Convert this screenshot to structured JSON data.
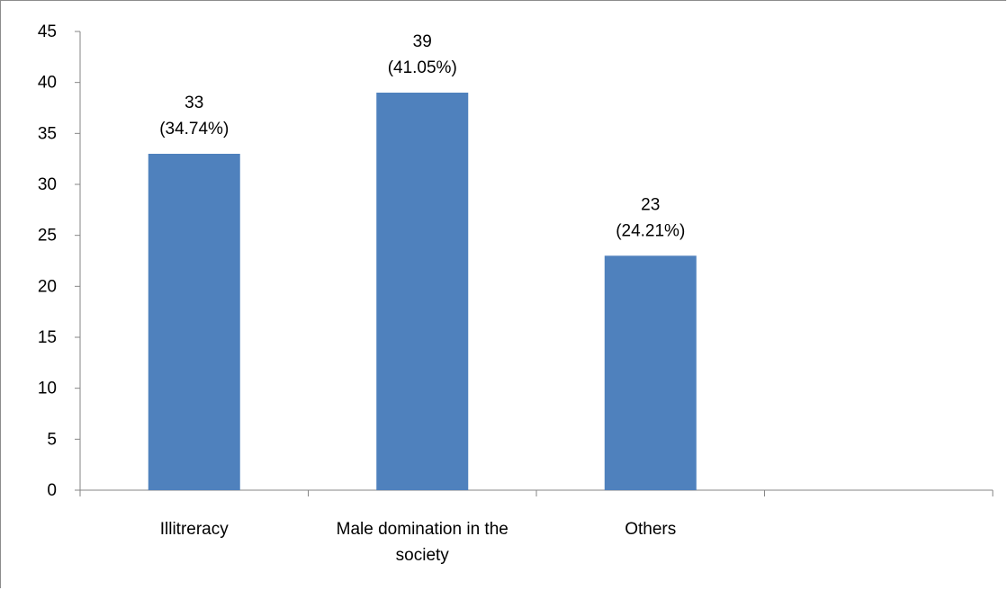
{
  "chart_data": {
    "type": "bar",
    "categories": [
      "Illitreracy",
      "Male domination in the society",
      "Others",
      ""
    ],
    "values": [
      33,
      39,
      23,
      null
    ],
    "data_labels": [
      [
        "33",
        "(34.74%)"
      ],
      [
        "39",
        "(41.05%)"
      ],
      [
        "23",
        "(24.21%)"
      ],
      null
    ],
    "category_label_lines": [
      [
        "Illitreracy"
      ],
      [
        "Male domination in the",
        "society"
      ],
      [
        "Others"
      ],
      []
    ],
    "title": "",
    "xlabel": "",
    "ylabel": "",
    "ylim": [
      0,
      45
    ],
    "yticks": [
      0,
      5,
      10,
      15,
      20,
      25,
      30,
      35,
      40,
      45
    ],
    "grid": false,
    "legend": "none",
    "bar_color": "#4f81bd",
    "axis_color": "#868686"
  }
}
